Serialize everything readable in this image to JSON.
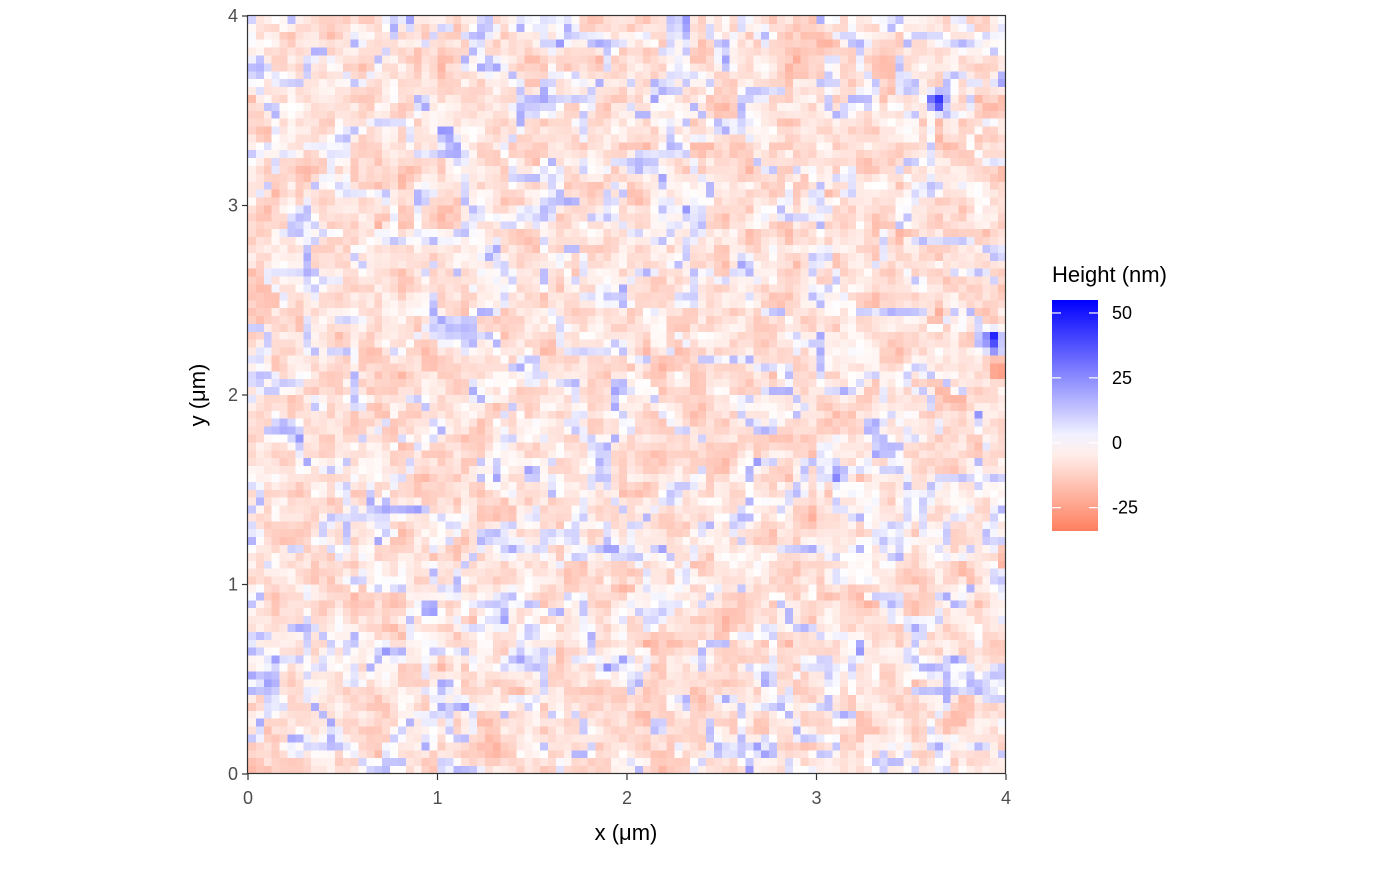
{
  "chart_data": {
    "type": "heatmap",
    "title": "",
    "xlabel": "x (μm)",
    "ylabel": "y (μm)",
    "xlim": [
      0,
      4
    ],
    "ylim": [
      0,
      4
    ],
    "x_ticks": [
      "0",
      "1",
      "2",
      "3",
      "4"
    ],
    "y_ticks": [
      "0",
      "1",
      "2",
      "3",
      "4"
    ],
    "grid": false,
    "grid_resolution": [
      96,
      96
    ],
    "legend": {
      "title": "Height (nm)",
      "placement": "right",
      "range": [
        -34,
        55
      ],
      "breaks": [
        50,
        25,
        0,
        -25
      ],
      "labels": [
        "50",
        "25",
        "0",
        "-25"
      ],
      "colors": {
        "low": "#FF7F5F",
        "mid": "#FFFFFF",
        "high": "#0000FF"
      }
    },
    "features": [
      {
        "x": 3.65,
        "y": 3.57,
        "value": 48
      },
      {
        "x": 3.95,
        "y": 2.3,
        "value": 55
      },
      {
        "x": 3.98,
        "y": 2.12,
        "value": -30
      },
      {
        "x": 0.95,
        "y": 0.86,
        "value": 30
      },
      {
        "x": 3.12,
        "y": 1.57,
        "value": 28
      }
    ]
  }
}
